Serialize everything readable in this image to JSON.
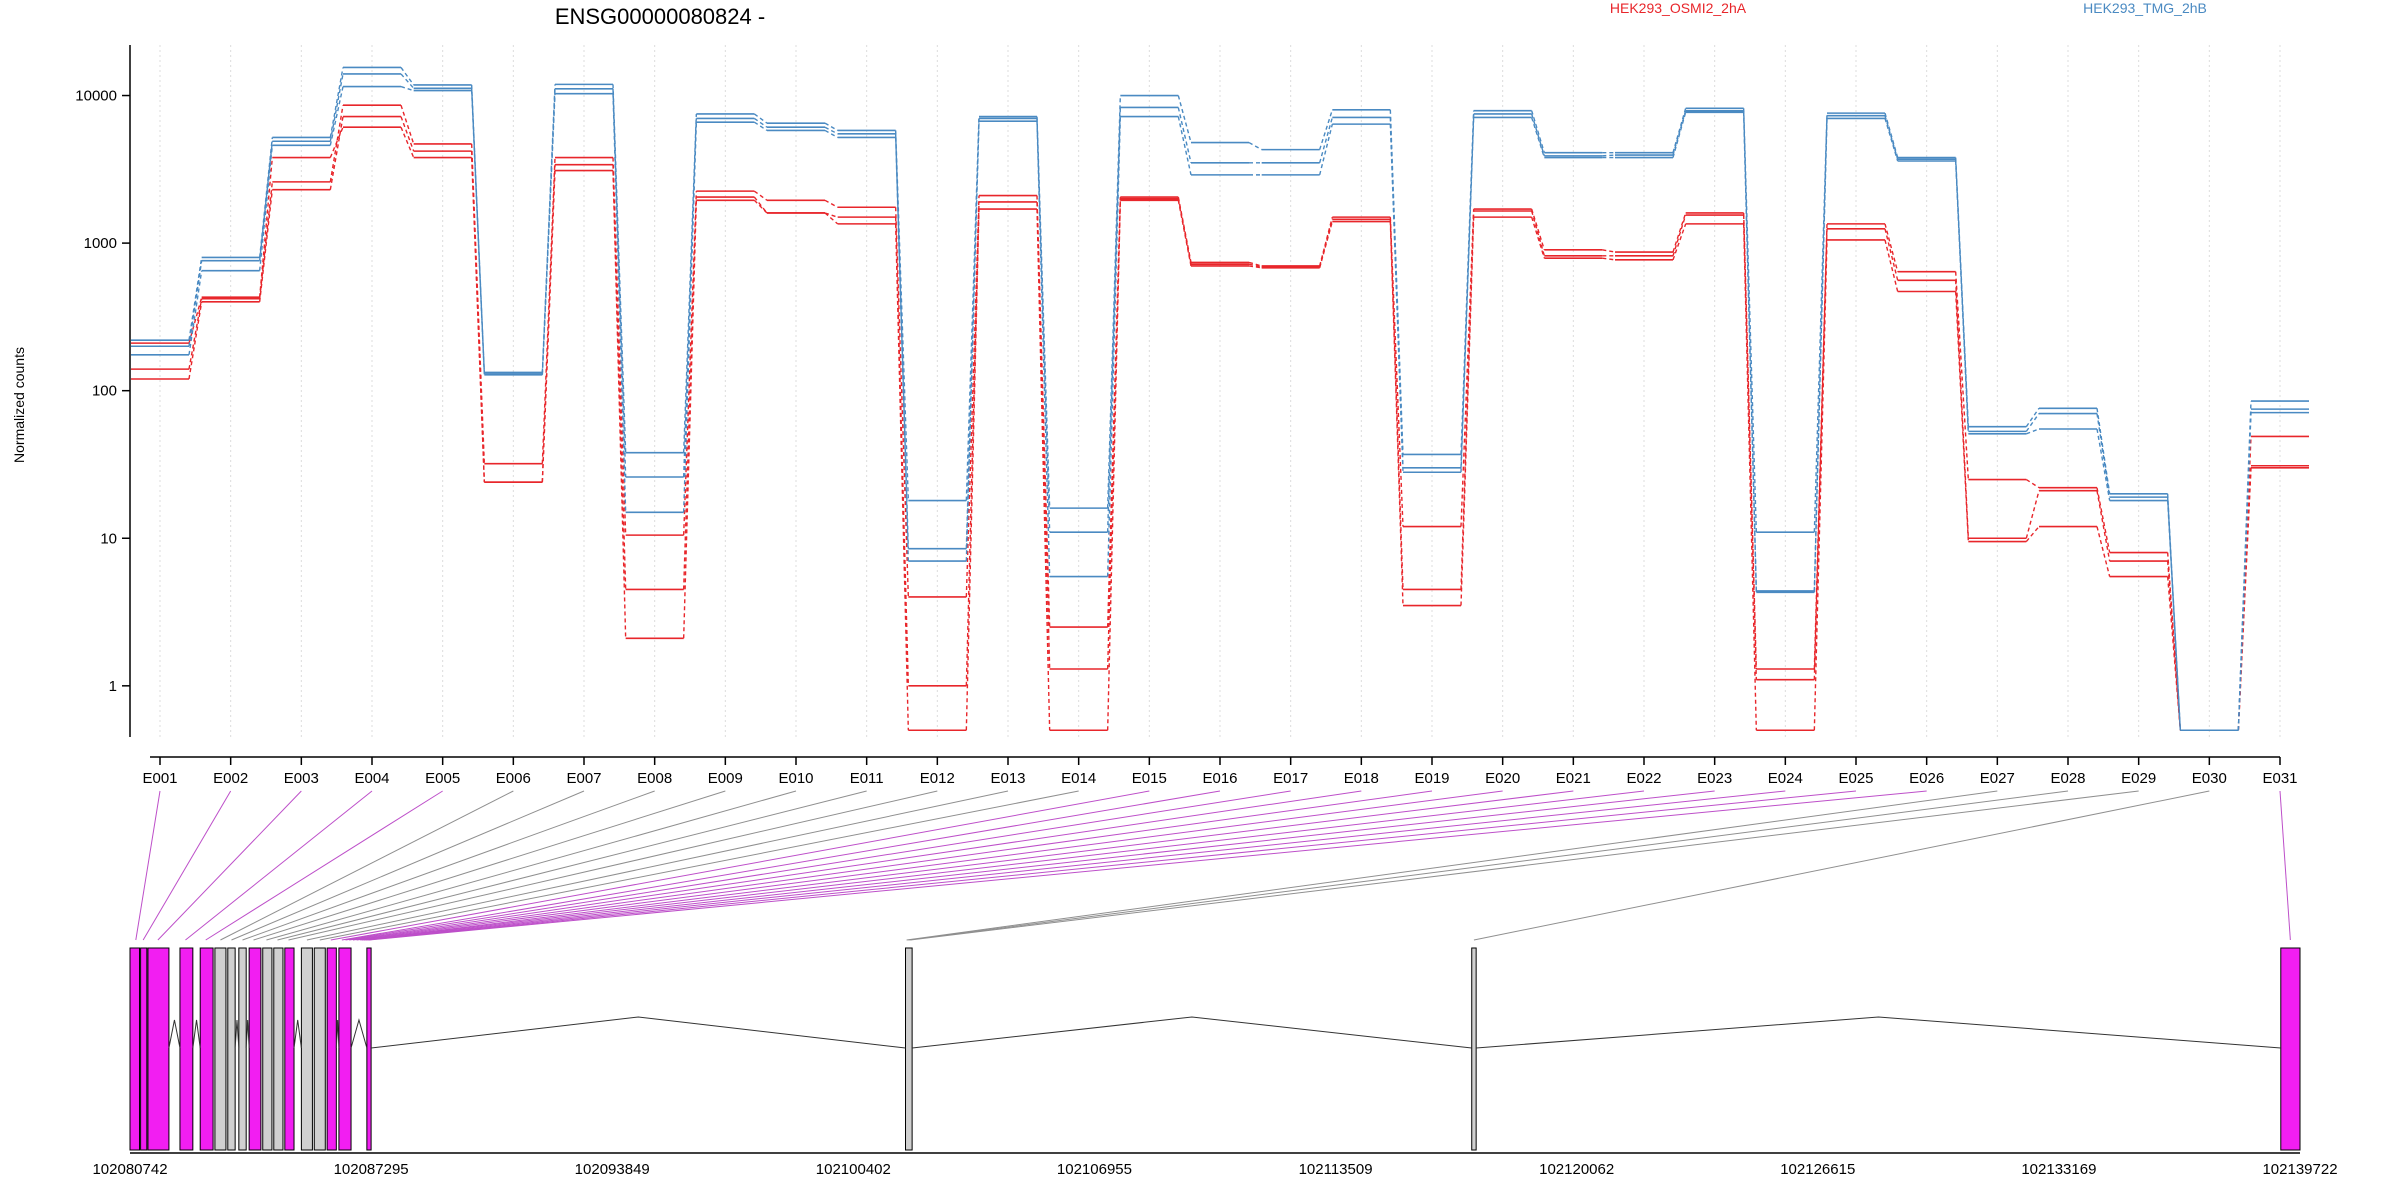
{
  "chart_data": {
    "type": "line",
    "title": "ENSG00000080824 -",
    "ylabel": "Normalized counts",
    "yscale": "log",
    "ylim": [
      0.45,
      22000
    ],
    "yticks": [
      1,
      10,
      100,
      1000,
      10000
    ],
    "ytick_labels": [
      "1",
      "10",
      "100",
      "1000",
      "10000"
    ],
    "categories": [
      "E001",
      "E002",
      "E003",
      "E004",
      "E005",
      "E006",
      "E007",
      "E008",
      "E009",
      "E010",
      "E011",
      "E012",
      "E013",
      "E014",
      "E015",
      "E016",
      "E017",
      "E018",
      "E019",
      "E020",
      "E021",
      "E022",
      "E023",
      "E024",
      "E025",
      "E026",
      "E027",
      "E028",
      "E029",
      "E030",
      "E031"
    ],
    "legend": [
      {
        "name": "HEK293_OSMI2_2hA",
        "color": "#e8262b"
      },
      {
        "name": "HEK293_TMG_2hB",
        "color": "#4a8ac2"
      }
    ],
    "series": [
      {
        "group": "OSMI2",
        "color": "#e8262b",
        "values": [
          140,
          420,
          2600,
          8600,
          4700,
          32,
          3800,
          10.5,
          2250,
          1950,
          1750,
          4,
          2100,
          2.5,
          2050,
          740,
          700,
          1500,
          12,
          1700,
          900,
          870,
          1600,
          1.3,
          1350,
          640,
          25,
          22,
          8,
          0.5,
          49
        ]
      },
      {
        "group": "OSMI2",
        "color": "#e8262b",
        "values": [
          120,
          400,
          2300,
          7200,
          4200,
          24,
          3400,
          4.5,
          2050,
          1600,
          1500,
          1,
          1900,
          1.3,
          2000,
          720,
          690,
          1450,
          4.5,
          1650,
          820,
          820,
          1550,
          1.1,
          1250,
          560,
          10,
          21,
          7,
          0.5,
          31
        ]
      },
      {
        "group": "OSMI2",
        "color": "#e8262b",
        "values": [
          210,
          430,
          3800,
          6100,
          3800,
          24,
          3100,
          2.1,
          1950,
          1600,
          1350,
          0.5,
          1700,
          0.5,
          1950,
          700,
          680,
          1400,
          3.5,
          1500,
          790,
          770,
          1350,
          0.5,
          1050,
          470,
          9.5,
          12,
          5.5,
          0.5,
          30
        ]
      },
      {
        "group": "TMG",
        "color": "#4a8ac2",
        "values": [
          220,
          800,
          5200,
          15500,
          11800,
          133,
          11900,
          38,
          7500,
          6500,
          5800,
          18,
          7200,
          16,
          10000,
          4800,
          4300,
          8000,
          37,
          7900,
          4100,
          4100,
          8200,
          11,
          7600,
          3800,
          57,
          76,
          20,
          0.5,
          85
        ]
      },
      {
        "group": "TMG",
        "color": "#4a8ac2",
        "values": [
          200,
          760,
          4900,
          14000,
          11200,
          130,
          11100,
          26,
          7000,
          6100,
          5500,
          8.5,
          7000,
          11,
          8300,
          3500,
          3500,
          7100,
          30,
          7500,
          3900,
          3950,
          7900,
          4.4,
          7300,
          3700,
          53,
          70,
          19,
          0.5,
          75
        ]
      },
      {
        "group": "TMG",
        "color": "#4a8ac2",
        "values": [
          175,
          650,
          4600,
          11500,
          10800,
          128,
          10300,
          15,
          6600,
          5800,
          5200,
          7,
          6700,
          5.5,
          7200,
          2900,
          2900,
          6400,
          28,
          7100,
          3800,
          3800,
          7700,
          4.3,
          7000,
          3600,
          51,
          55,
          18,
          0.5,
          71
        ]
      }
    ],
    "genomic_axis": {
      "tick_labels": [
        "102080742",
        "102087295",
        "102093849",
        "102100402",
        "102106955",
        "102113509",
        "102120062",
        "102126615",
        "102133169",
        "102139722"
      ]
    }
  }
}
